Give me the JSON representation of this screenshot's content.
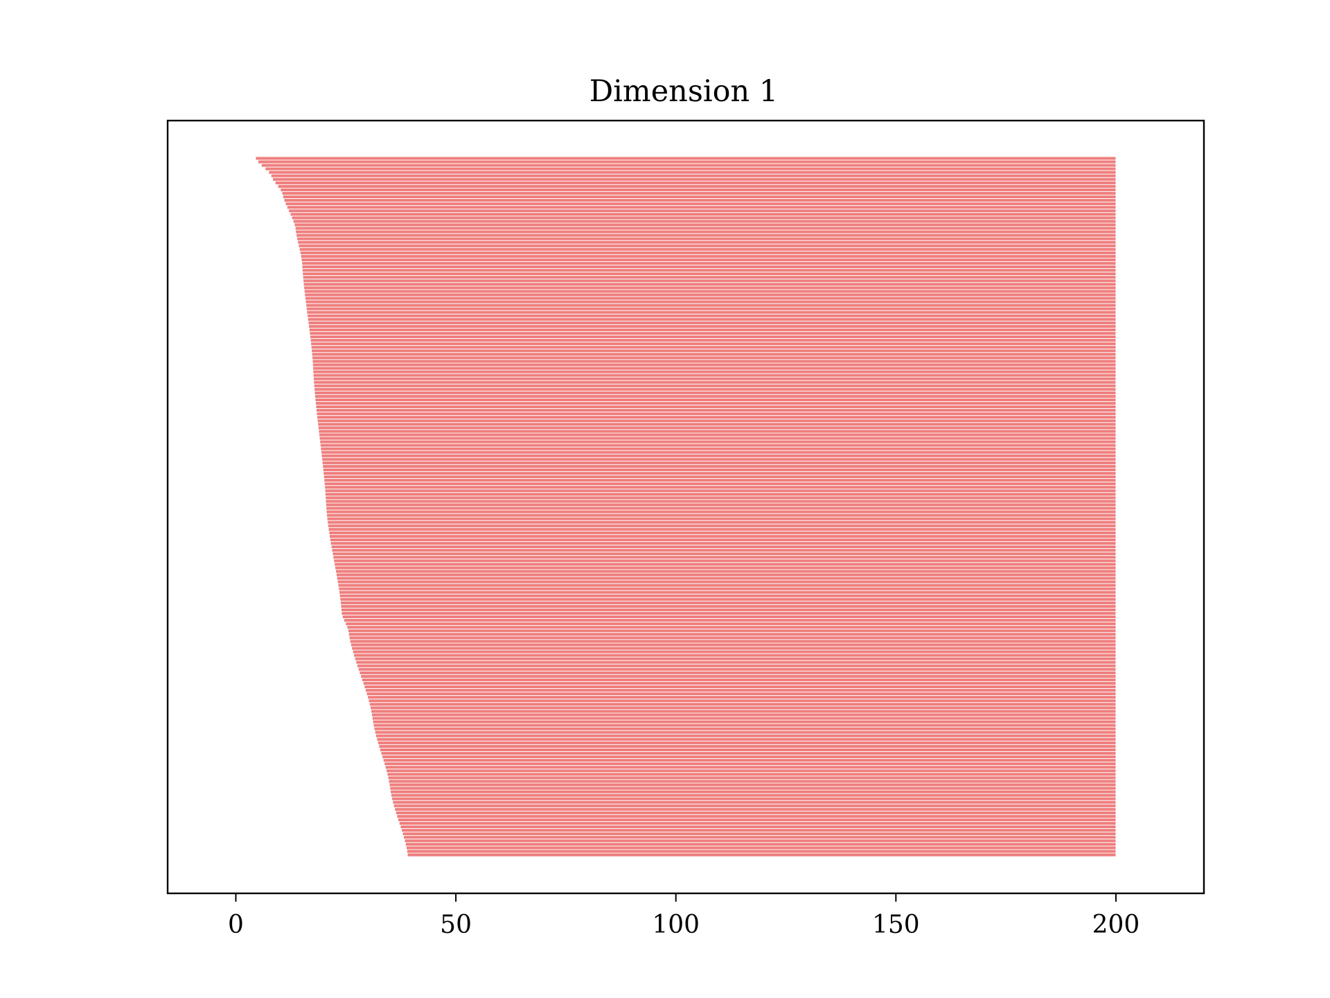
{
  "chart_data": {
    "type": "bar",
    "orientation": "horizontal",
    "title": "Dimension 1",
    "xlabel": "",
    "ylabel": "",
    "xlim": [
      -15.5,
      220
    ],
    "xticks": [
      0,
      50,
      100,
      150,
      200
    ],
    "xtick_labels": [
      "0",
      "50",
      "100",
      "150",
      "200"
    ],
    "yticks": [],
    "grid": false,
    "legend": "none",
    "bar_count": 200,
    "bar_color": "#ef7e7e",
    "bar_edge_color": "#ffffff",
    "bar_end": 200,
    "bar_start_profile": {
      "anchor_index": [
        0,
        5,
        10,
        20,
        30,
        60,
        100,
        130,
        135,
        160,
        180,
        199
      ],
      "anchor_start": [
        4.5,
        8,
        10.5,
        13.5,
        15,
        17.5,
        20.5,
        24,
        25.5,
        31,
        35,
        39
      ]
    }
  }
}
